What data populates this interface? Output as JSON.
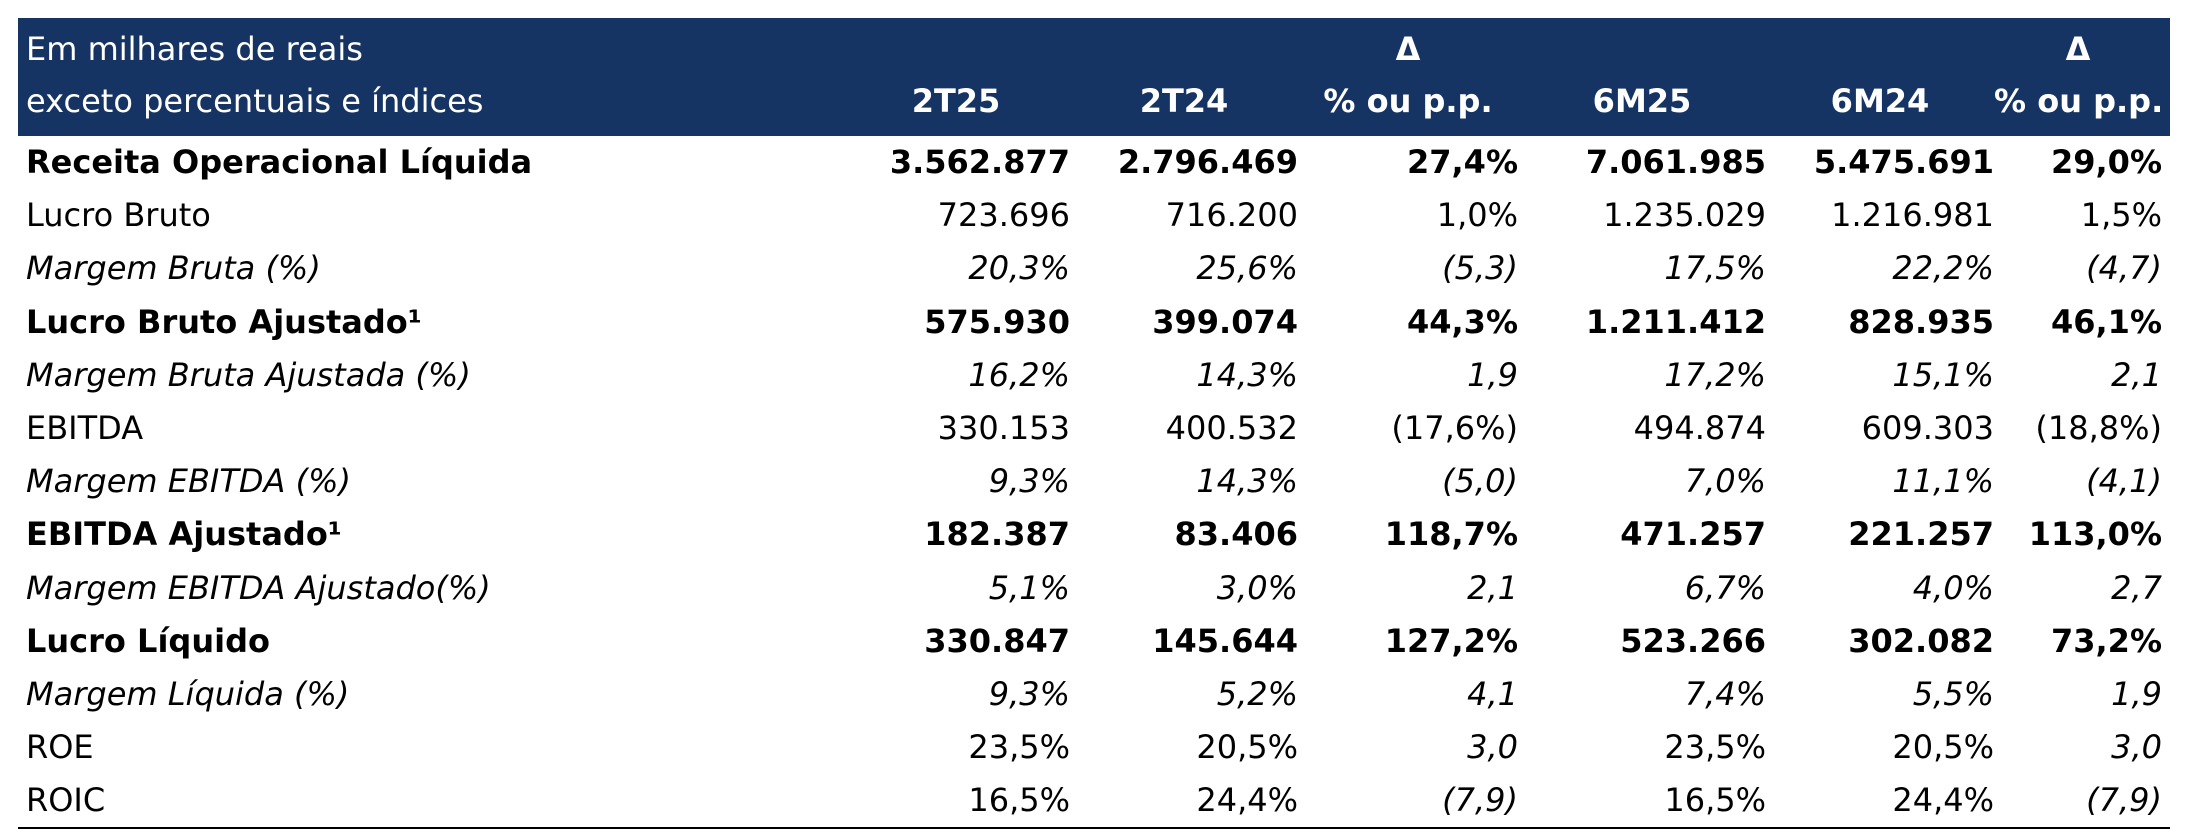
{
  "header": {
    "row1_label": "Em milhares de reais",
    "row2_label": "exceto percentuais e índices",
    "delta_symbol_1": "Δ",
    "delta_symbol_2": "Δ",
    "columns": [
      "2T25",
      "2T24",
      "% ou p.p.",
      "6M25",
      "6M24",
      "% ou p.p."
    ]
  },
  "rows": [
    {
      "label": "Receita Operacional Líquida",
      "style": "bold",
      "values": [
        "3.562.877",
        "2.796.469",
        "27,4%",
        "7.061.985",
        "5.475.691",
        "29,0%"
      ]
    },
    {
      "label": "Lucro Bruto",
      "style": "normal",
      "values": [
        "723.696",
        "716.200",
        "1,0%",
        "1.235.029",
        "1.216.981",
        "1,5%"
      ]
    },
    {
      "label": "Margem Bruta (%)",
      "style": "italic",
      "values": [
        "20,3%",
        "25,6%",
        "(5,3)",
        "17,5%",
        "22,2%",
        "(4,7)"
      ]
    },
    {
      "label": "Lucro Bruto Ajustado¹",
      "style": "bold",
      "values": [
        "575.930",
        "399.074",
        "44,3%",
        "1.211.412",
        "828.935",
        "46,1%"
      ]
    },
    {
      "label": "Margem Bruta Ajustada (%)",
      "style": "italic",
      "values": [
        "16,2%",
        "14,3%",
        "1,9",
        "17,2%",
        "15,1%",
        "2,1"
      ]
    },
    {
      "label": "EBITDA",
      "style": "normal",
      "values": [
        "330.153",
        "400.532",
        "(17,6%)",
        "494.874",
        "609.303",
        "(18,8%)"
      ]
    },
    {
      "label": "Margem EBITDA (%)",
      "style": "italic",
      "values": [
        "9,3%",
        "14,3%",
        "(5,0)",
        "7,0%",
        "11,1%",
        "(4,1)"
      ]
    },
    {
      "label": "EBITDA Ajustado¹",
      "style": "bold",
      "values": [
        "182.387",
        "83.406",
        "118,7%",
        "471.257",
        "221.257",
        "113,0%"
      ]
    },
    {
      "label": "Margem EBITDA Ajustado(%)",
      "style": "italic",
      "values": [
        "5,1%",
        "3,0%",
        "2,1",
        "6,7%",
        "4,0%",
        "2,7"
      ]
    },
    {
      "label": "Lucro Líquido",
      "style": "bold",
      "values": [
        "330.847",
        "145.644",
        "127,2%",
        "523.266",
        "302.082",
        "73,2%"
      ]
    },
    {
      "label": "Margem Líquida (%)",
      "style": "italic",
      "values": [
        "9,3%",
        "5,2%",
        "4,1",
        "7,4%",
        "5,5%",
        "1,9"
      ]
    },
    {
      "label": "ROE",
      "style": "normal",
      "values": [
        "23,5%",
        "20,5%",
        "3,0",
        "23,5%",
        "20,5%",
        "3,0"
      ],
      "italic_cols": [
        2,
        5
      ]
    },
    {
      "label": "ROIC",
      "style": "normal",
      "values": [
        "16,5%",
        "24,4%",
        "(7,9)",
        "16,5%",
        "24,4%",
        "(7,9)"
      ],
      "italic_cols": [
        2,
        5
      ]
    }
  ],
  "colors": {
    "header_bg": "#163463",
    "header_text": "#ffffff",
    "body_text": "#000000"
  }
}
